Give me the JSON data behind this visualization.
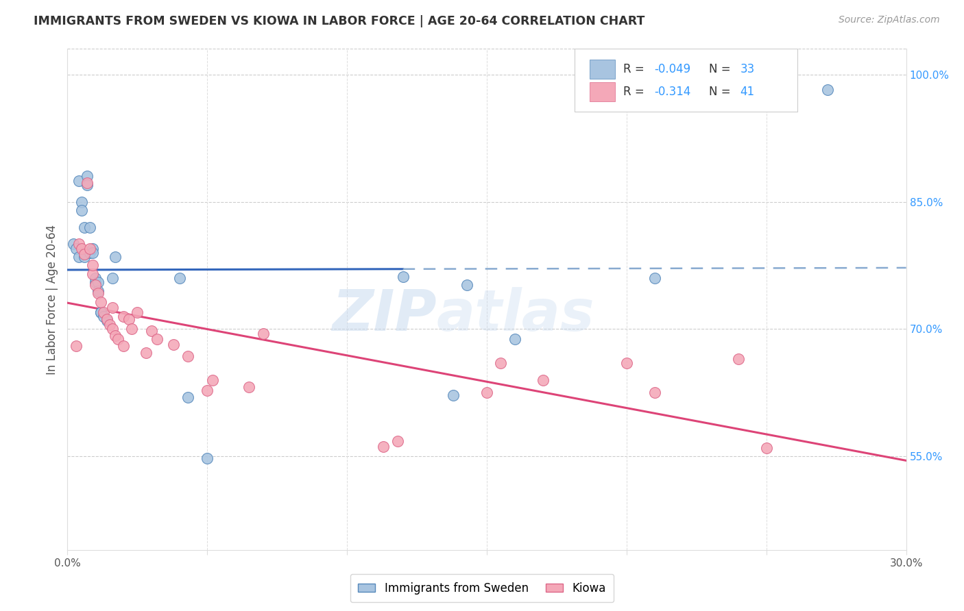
{
  "title": "IMMIGRANTS FROM SWEDEN VS KIOWA IN LABOR FORCE | AGE 20-64 CORRELATION CHART",
  "source": "Source: ZipAtlas.com",
  "ylabel": "In Labor Force | Age 20-64",
  "xlim": [
    0.0,
    0.3
  ],
  "ylim": [
    0.44,
    1.03
  ],
  "xticks": [
    0.0,
    0.05,
    0.1,
    0.15,
    0.2,
    0.25,
    0.3
  ],
  "xticklabels": [
    "0.0%",
    "",
    "",
    "",
    "",
    "",
    "30.0%"
  ],
  "yticks_right": [
    0.55,
    0.7,
    0.85,
    1.0
  ],
  "ytick_labels_right": [
    "55.0%",
    "70.0%",
    "85.0%",
    "100.0%"
  ],
  "sweden_color": "#a8c4e0",
  "kiowa_color": "#f4a8b8",
  "sweden_edge": "#5588bb",
  "kiowa_edge": "#dd6688",
  "trend_sweden_solid_color": "#3366bb",
  "trend_sweden_dash_color": "#88aad0",
  "trend_kiowa_color": "#dd4477",
  "watermark_color": "#c8d8ec",
  "sweden_x": [
    0.002,
    0.003,
    0.004,
    0.004,
    0.005,
    0.005,
    0.006,
    0.006,
    0.007,
    0.007,
    0.008,
    0.008,
    0.009,
    0.009,
    0.01,
    0.01,
    0.011,
    0.011,
    0.012,
    0.012,
    0.013,
    0.014,
    0.016,
    0.017,
    0.04,
    0.043,
    0.05,
    0.12,
    0.138,
    0.143,
    0.16,
    0.21,
    0.272
  ],
  "sweden_y": [
    0.8,
    0.795,
    0.785,
    0.875,
    0.85,
    0.84,
    0.785,
    0.82,
    0.88,
    0.87,
    0.79,
    0.82,
    0.795,
    0.79,
    0.755,
    0.76,
    0.755,
    0.745,
    0.72,
    0.72,
    0.715,
    0.71,
    0.76,
    0.785,
    0.76,
    0.62,
    0.548,
    0.762,
    0.622,
    0.752,
    0.688,
    0.76,
    0.982
  ],
  "kiowa_x": [
    0.003,
    0.004,
    0.005,
    0.006,
    0.007,
    0.008,
    0.009,
    0.009,
    0.01,
    0.011,
    0.012,
    0.013,
    0.014,
    0.015,
    0.016,
    0.016,
    0.017,
    0.018,
    0.02,
    0.02,
    0.022,
    0.023,
    0.025,
    0.028,
    0.03,
    0.032,
    0.038,
    0.043,
    0.05,
    0.052,
    0.065,
    0.07,
    0.113,
    0.118,
    0.15,
    0.155,
    0.17,
    0.2,
    0.21,
    0.24,
    0.25
  ],
  "kiowa_y": [
    0.68,
    0.8,
    0.795,
    0.788,
    0.872,
    0.795,
    0.765,
    0.775,
    0.752,
    0.742,
    0.732,
    0.72,
    0.712,
    0.705,
    0.7,
    0.725,
    0.692,
    0.688,
    0.68,
    0.715,
    0.712,
    0.7,
    0.72,
    0.672,
    0.698,
    0.688,
    0.682,
    0.668,
    0.628,
    0.64,
    0.632,
    0.695,
    0.562,
    0.568,
    0.625,
    0.66,
    0.64,
    0.66,
    0.625,
    0.665,
    0.56
  ]
}
